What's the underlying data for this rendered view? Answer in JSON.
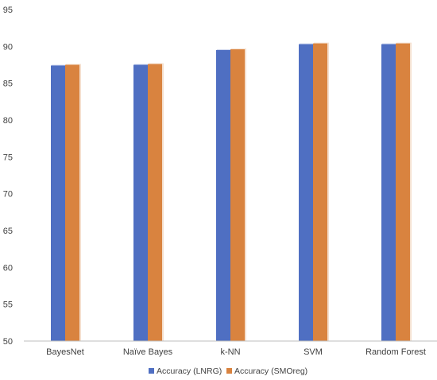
{
  "chart_data": {
    "type": "bar",
    "categories": [
      "BayesNet",
      "Naïve Bayes",
      "k-NN",
      "SVM",
      "Random Forest"
    ],
    "series": [
      {
        "name": "Accuracy (LNRG)",
        "color": "#4f6fc2",
        "values": [
          87.4,
          87.5,
          89.5,
          90.3,
          90.3
        ]
      },
      {
        "name": "Accuracy (SMOreg)",
        "color": "#d9833f",
        "values": [
          87.5,
          87.6,
          89.6,
          90.4,
          90.4
        ]
      }
    ],
    "ylim": [
      50,
      95
    ],
    "yticks": [
      50,
      55,
      60,
      65,
      70,
      75,
      80,
      85,
      90,
      95
    ],
    "legend": "bottom",
    "grid": false
  }
}
